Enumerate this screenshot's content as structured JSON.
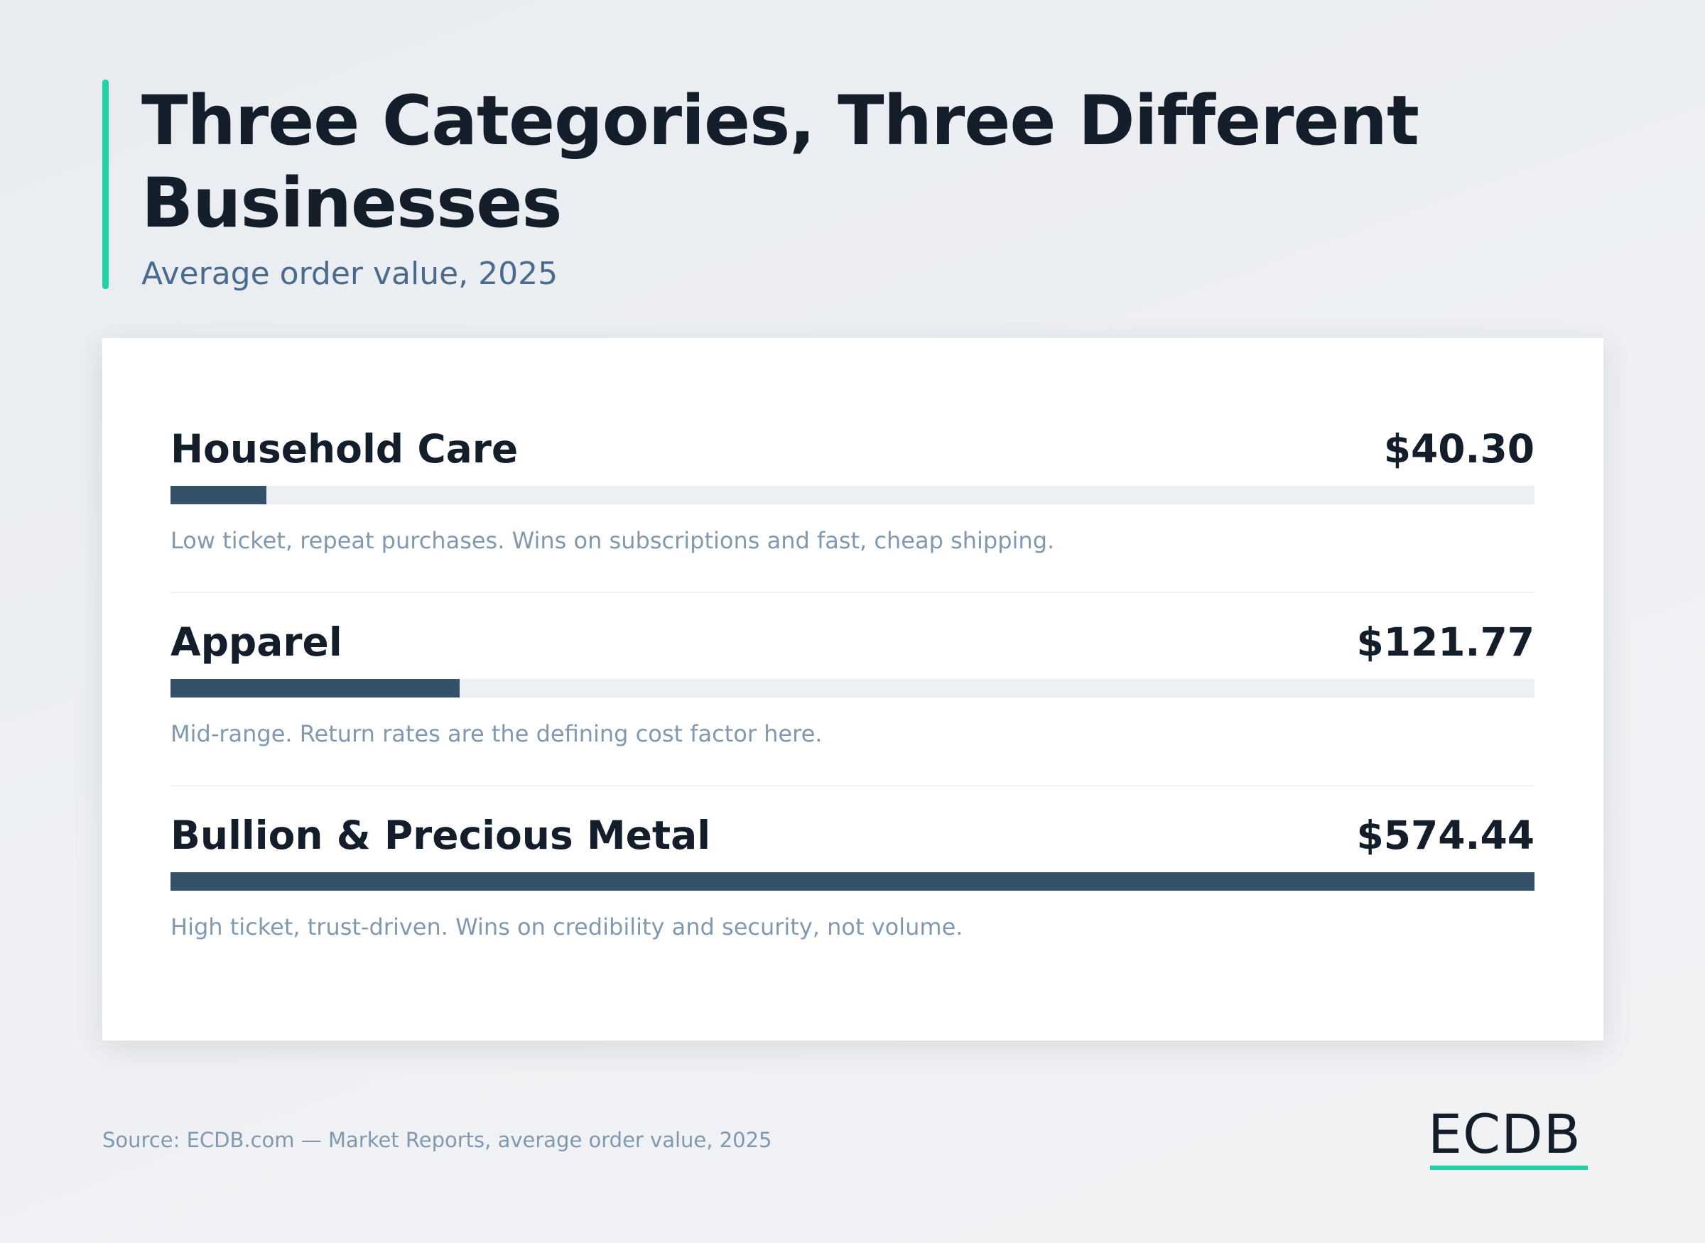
{
  "chart_data": {
    "type": "bar",
    "orientation": "horizontal",
    "title": "Three Categories, Three Different Businesses",
    "subtitle": "Average order value, 2025",
    "categories": [
      "Household Care",
      "Apparel",
      "Bullion & Precious Metal"
    ],
    "values": [
      40.3,
      121.77,
      574.44
    ],
    "value_labels": [
      "$40.30",
      "$121.77",
      "$574.44"
    ],
    "descriptions": [
      "Low ticket, repeat purchases. Wins on subscriptions and fast, cheap shipping.",
      "Mid-range. Return rates are the defining cost factor here.",
      "High ticket, trust-driven. Wins on credibility and security, not volume."
    ],
    "color": "#34506b",
    "track_color": "#edf0f3",
    "xlim": [
      0,
      574.44
    ],
    "source": "Source: ECDB.com — Market Reports, average order value, 2025",
    "logo": "ECDB"
  }
}
